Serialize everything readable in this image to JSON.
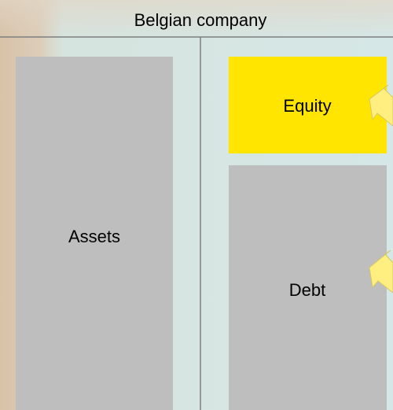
{
  "header": {
    "title": "Belgian company"
  },
  "boxes": [
    {
      "label": "Assets"
    },
    {
      "label": "Equity"
    },
    {
      "label": "Debt"
    }
  ]
}
